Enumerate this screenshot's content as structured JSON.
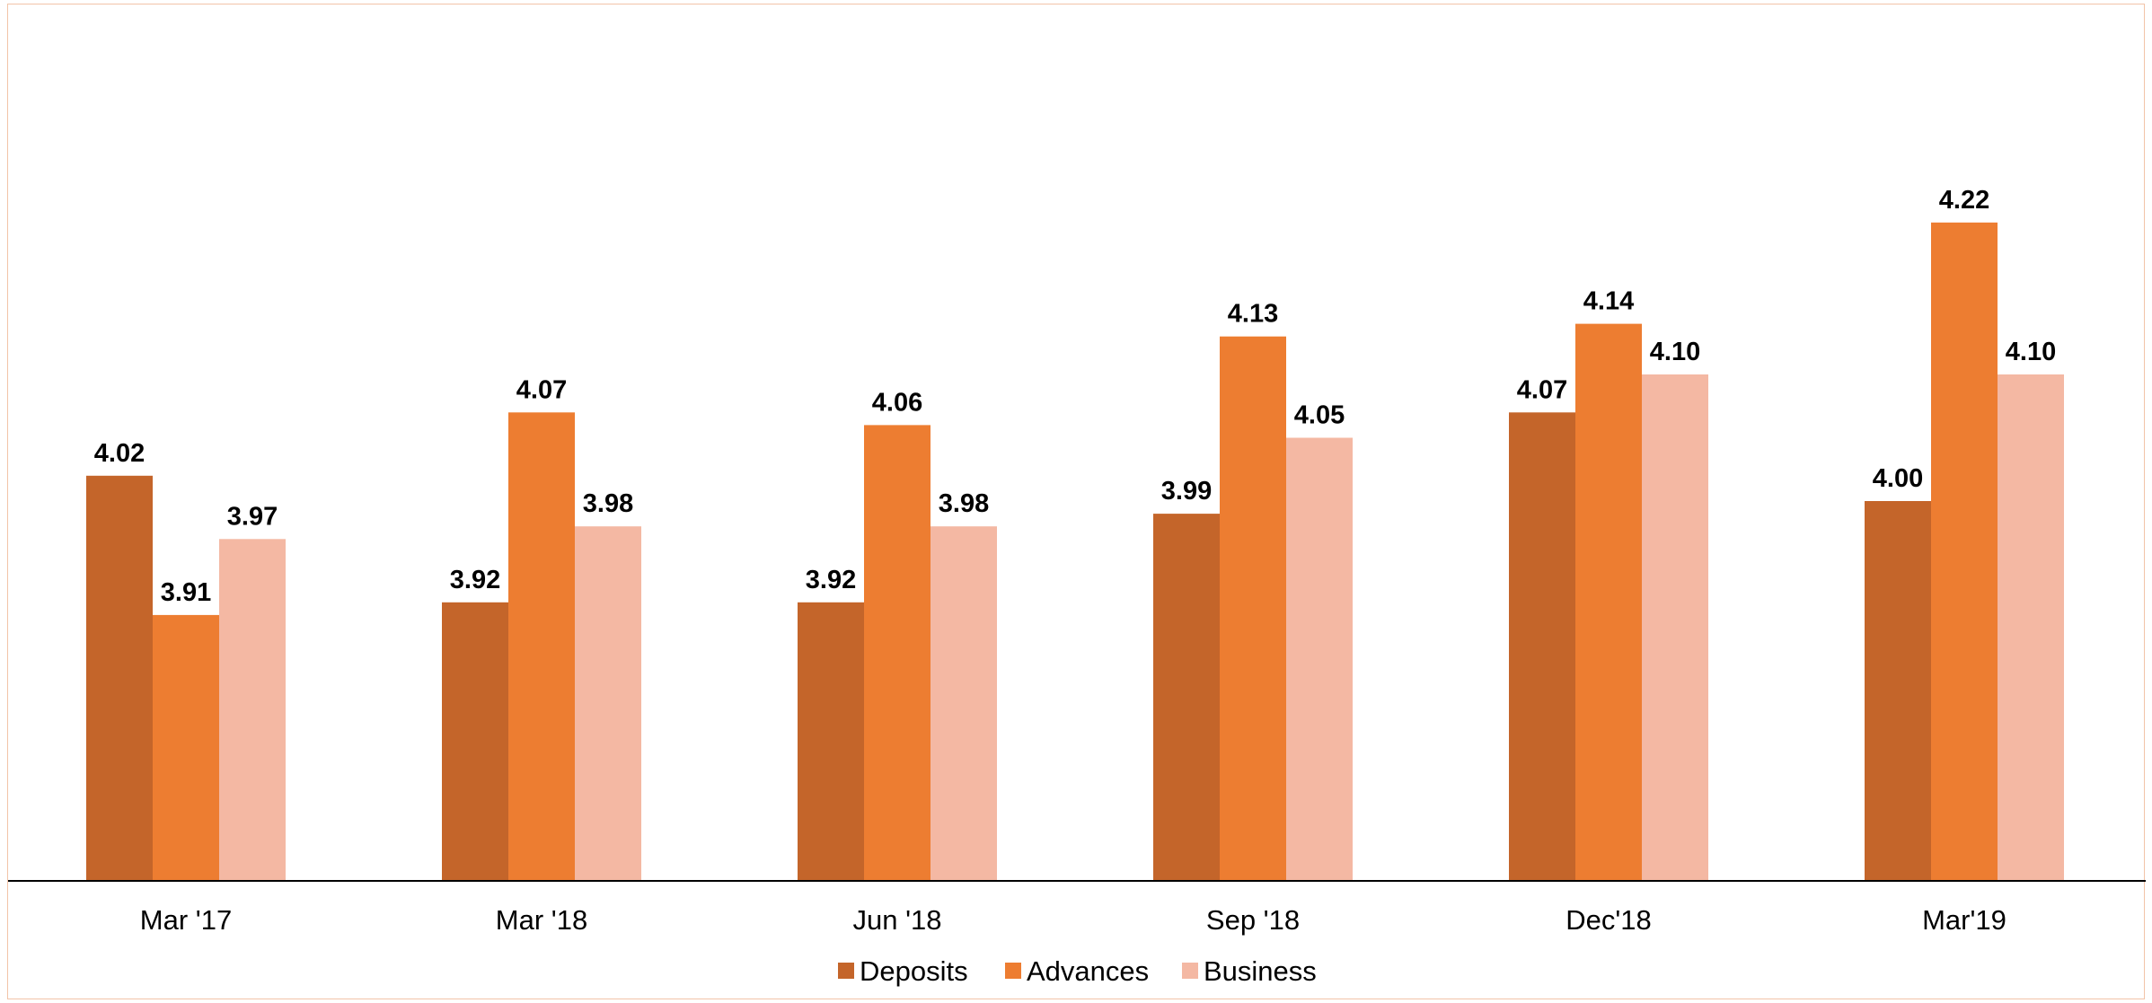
{
  "chart_data": {
    "type": "bar",
    "title": "",
    "xlabel": "",
    "ylabel": "",
    "categories": [
      "Mar '17",
      "Mar '18",
      "Jun '18",
      "Sep '18",
      "Dec'18",
      "Mar'19"
    ],
    "series": [
      {
        "name": "Deposits",
        "color": "#c4652a",
        "values": [
          4.02,
          3.92,
          3.92,
          3.99,
          4.07,
          4.0
        ],
        "labels": [
          "4.02",
          "3.92",
          "3.92",
          "3.99",
          "4.07",
          "4.00"
        ]
      },
      {
        "name": "Advances",
        "color": "#ed7d31",
        "values": [
          3.91,
          4.07,
          4.06,
          4.13,
          4.14,
          4.22
        ],
        "labels": [
          "3.91",
          "4.07",
          "4.06",
          "4.13",
          "4.14",
          "4.22"
        ]
      },
      {
        "name": "Business",
        "color": "#f4b8a3",
        "values": [
          3.97,
          3.98,
          3.98,
          4.05,
          4.1,
          4.1
        ],
        "labels": [
          "3.97",
          "3.98",
          "3.98",
          "4.05",
          "4.10",
          "4.10"
        ]
      }
    ],
    "ylim": [
      3.7,
      4.3
    ],
    "grid": false,
    "y_axis_visible": false,
    "legend_position": "bottom-center",
    "axis_color": "#000000",
    "frame_color": "#f2c4a8"
  }
}
